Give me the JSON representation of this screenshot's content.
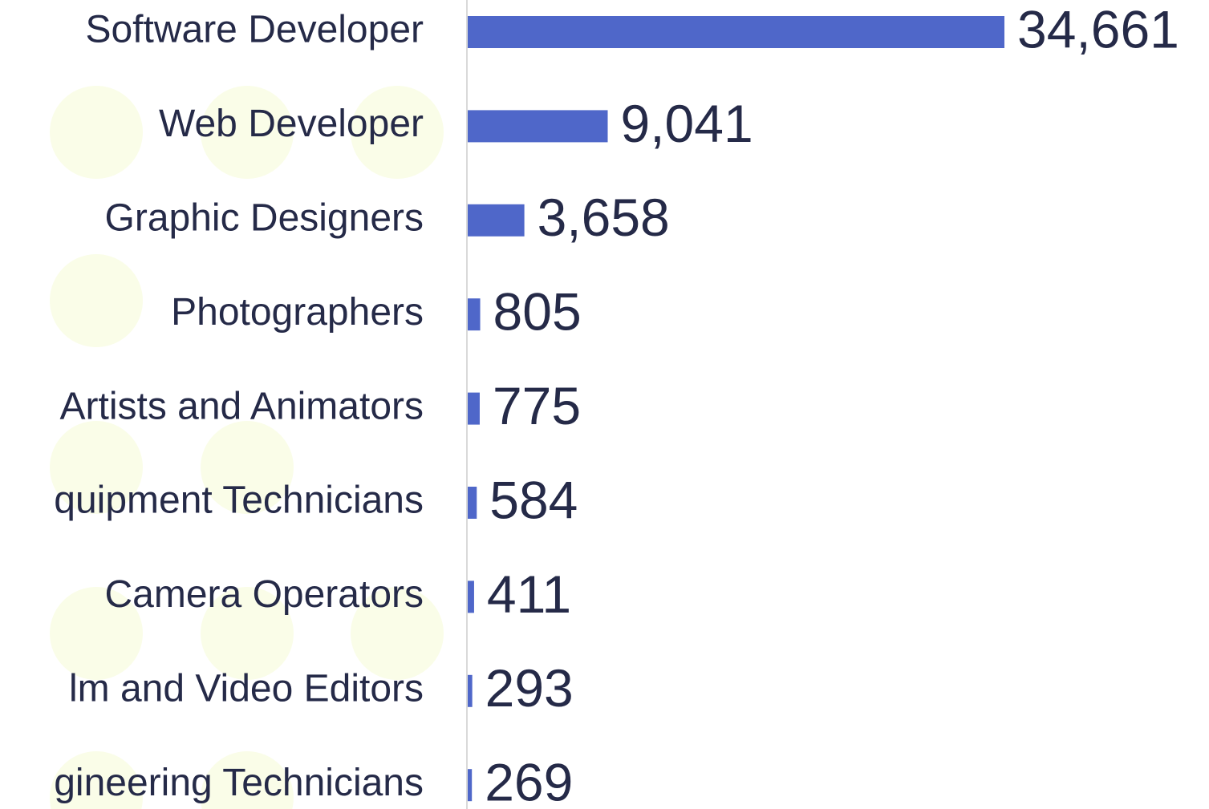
{
  "chart_data": {
    "type": "bar",
    "orientation": "horizontal",
    "color": "#4f67c9",
    "categories": [
      "Software Developer",
      "Web Developer",
      "Graphic Designers",
      "Photographers",
      "Artists and Animators",
      "quipment Technicians",
      "Camera Operators",
      "lm and Video Editors",
      "gineering Technicians"
    ],
    "values": [
      34661,
      9041,
      3658,
      805,
      775,
      584,
      411,
      293,
      269
    ],
    "value_labels": [
      "34,661",
      "9,041",
      "3,658",
      "805",
      "775",
      "584",
      "411",
      "293",
      "269"
    ]
  }
}
